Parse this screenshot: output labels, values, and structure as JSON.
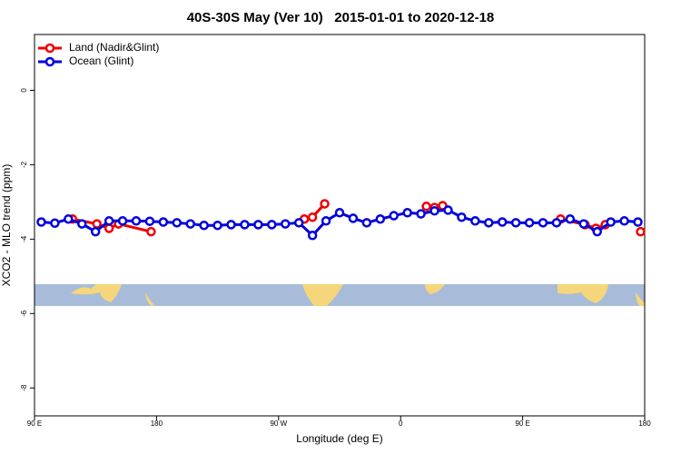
{
  "chart_data": {
    "type": "line",
    "title": "40S-30S May (Ver 10)   2015-01-01 to 2020-12-18",
    "xlabel": "Longitude (deg E)",
    "ylabel": "XCO2 - MLO trend (ppm)",
    "xlim": [
      90,
      540
    ],
    "ylim": [
      -8.75,
      1.5
    ],
    "xticks": [
      {
        "value": 90,
        "label": "90 E"
      },
      {
        "value": 180,
        "label": "180"
      },
      {
        "value": 270,
        "label": "90 W"
      },
      {
        "value": 360,
        "label": "0"
      },
      {
        "value": 450,
        "label": "90 E"
      },
      {
        "value": 540,
        "label": "180"
      }
    ],
    "yticks": [
      0,
      -2,
      -4,
      -6,
      -8
    ],
    "legend": "upper left",
    "series": [
      {
        "name": "Land (Nadir&Glint)",
        "color": "#ee0000",
        "x": [
          118,
          136,
          145,
          152,
          176,
          null,
          289,
          295,
          304,
          null,
          379,
          385,
          391,
          null,
          478,
          496,
          504,
          511,
          null,
          537
        ],
        "values": [
          -3.46,
          -3.59,
          -3.71,
          -3.59,
          -3.8,
          null,
          -3.46,
          -3.41,
          -3.05,
          null,
          -3.12,
          -3.15,
          -3.1,
          null,
          -3.46,
          -3.61,
          -3.71,
          -3.61,
          null,
          -3.8
        ]
      },
      {
        "name": "Ocean (Glint)",
        "color": "#0000dd",
        "x": [
          95,
          105,
          115,
          125,
          135,
          145,
          155,
          165,
          175,
          185,
          195,
          205,
          215,
          225,
          235,
          245,
          255,
          265,
          275,
          285,
          295,
          305,
          315,
          325,
          335,
          345,
          355,
          365,
          375,
          385,
          395,
          405,
          415,
          425,
          435,
          445,
          455,
          465,
          475,
          485,
          495,
          505,
          515,
          525,
          535
        ],
        "values": [
          -3.54,
          -3.57,
          -3.46,
          -3.59,
          -3.8,
          -3.51,
          -3.51,
          -3.51,
          -3.52,
          -3.54,
          -3.56,
          -3.59,
          -3.63,
          -3.63,
          -3.61,
          -3.61,
          -3.61,
          -3.61,
          -3.59,
          -3.56,
          -3.9,
          -3.51,
          -3.29,
          -3.44,
          -3.56,
          -3.46,
          -3.37,
          -3.29,
          -3.32,
          -3.24,
          -3.22,
          -3.41,
          -3.51,
          -3.56,
          -3.54,
          -3.56,
          -3.56,
          -3.56,
          -3.56,
          -3.46,
          -3.59,
          -3.8,
          -3.54,
          -3.51,
          -3.54
        ]
      }
    ]
  }
}
